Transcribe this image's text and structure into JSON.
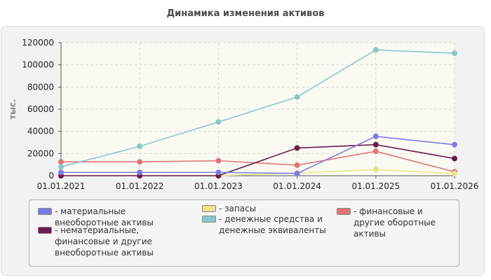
{
  "chart_data": {
    "type": "line",
    "title": "Динамика изменения активов",
    "xlabel": "",
    "ylabel": "тыс.",
    "categories": [
      "01.01.2021",
      "01.01.2022",
      "01.01.2023",
      "01.01.2024",
      "01.01.2025",
      "01.01.2026"
    ],
    "ylim": [
      0,
      120000
    ],
    "yticks": [
      0,
      20000,
      40000,
      60000,
      80000,
      100000,
      120000
    ],
    "grid": true,
    "legend_position": "bottom",
    "series": [
      {
        "name": "материальные внеоборотные активы",
        "color": "#7b7be6",
        "values": [
          3000,
          3000,
          3000,
          2000,
          35500,
          28000
        ]
      },
      {
        "name": "нематериальные, финансовые и другие внеоборотные активы",
        "color": "#6b1a4a",
        "values": [
          0,
          0,
          0,
          25000,
          28000,
          15500
        ]
      },
      {
        "name": "запасы",
        "color": "#e6e68c",
        "values": [
          0,
          0,
          0,
          2500,
          5500,
          2000
        ]
      },
      {
        "name": "денежные средства и денежные эквиваленты",
        "color": "#88c8c8",
        "values": [
          8000,
          26500,
          48500,
          71000,
          113500,
          110500
        ]
      },
      {
        "name": "финансовые и другие оборотные активы",
        "color": "#e07575",
        "values": [
          12500,
          12500,
          13500,
          9500,
          22000,
          3500
        ]
      }
    ]
  }
}
